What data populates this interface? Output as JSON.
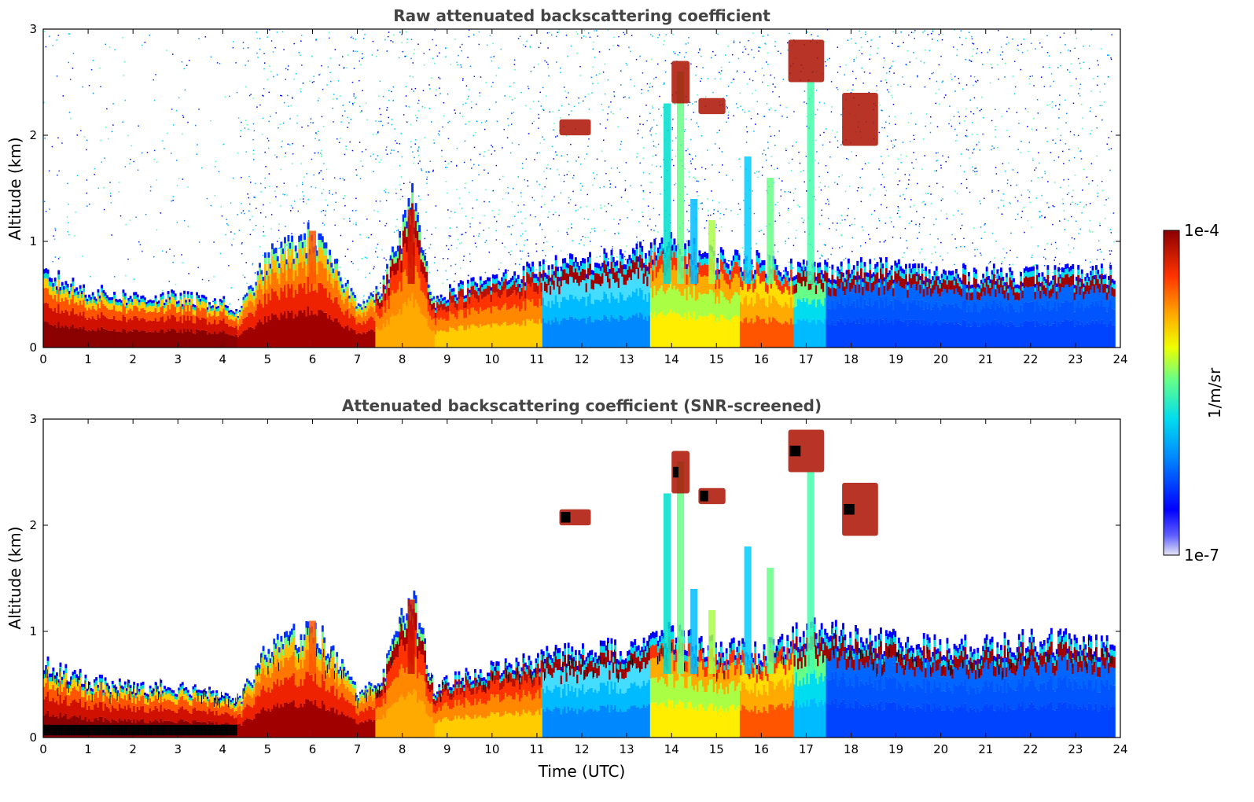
{
  "chart_data": [
    {
      "type": "heatmap",
      "title": "Raw attenuated backscattering coefficient",
      "xlabel": "",
      "ylabel": "Altitude (km)",
      "xlim": [
        0,
        24
      ],
      "ylim": [
        0,
        3
      ],
      "xticks": [
        "0",
        "1",
        "2",
        "3",
        "4",
        "5",
        "6",
        "7",
        "8",
        "9",
        "10",
        "11",
        "12",
        "13",
        "14",
        "15",
        "16",
        "17",
        "18",
        "19",
        "20",
        "21",
        "22",
        "23",
        "24"
      ],
      "yticks": [
        "0",
        "1",
        "2",
        "3"
      ],
      "scale": "log",
      "boundary_layer_top_km": [
        {
          "t": 0,
          "z": 0.65
        },
        {
          "t": 1,
          "z": 0.5
        },
        {
          "t": 2,
          "z": 0.45
        },
        {
          "t": 3,
          "z": 0.45
        },
        {
          "t": 4,
          "z": 0.4
        },
        {
          "t": 4.3,
          "z": 0.3
        },
        {
          "t": 5,
          "z": 0.8
        },
        {
          "t": 6,
          "z": 1.0
        },
        {
          "t": 7,
          "z": 0.4
        },
        {
          "t": 7.5,
          "z": 0.5
        },
        {
          "t": 8.2,
          "z": 1.3
        },
        {
          "t": 8.7,
          "z": 0.4
        },
        {
          "t": 9,
          "z": 0.5
        },
        {
          "t": 10,
          "z": 0.6
        },
        {
          "t": 11,
          "z": 0.7
        },
        {
          "t": 12,
          "z": 0.75
        },
        {
          "t": 13,
          "z": 0.8
        },
        {
          "t": 14,
          "z": 0.9
        },
        {
          "t": 15,
          "z": 0.8
        },
        {
          "t": 16,
          "z": 0.75
        },
        {
          "t": 17,
          "z": 0.7
        },
        {
          "t": 18,
          "z": 0.7
        },
        {
          "t": 19,
          "z": 0.7
        },
        {
          "t": 20,
          "z": 0.65
        },
        {
          "t": 21,
          "z": 0.65
        },
        {
          "t": 22,
          "z": 0.65
        },
        {
          "t": 23,
          "z": 0.65
        },
        {
          "t": 23.85,
          "z": 0.65
        }
      ],
      "cloud_layers": [
        {
          "t0": 11.5,
          "t1": 12.2,
          "z0": 2.0,
          "z1": 2.15
        },
        {
          "t0": 14.0,
          "t1": 14.4,
          "z0": 2.3,
          "z1": 2.7
        },
        {
          "t0": 14.6,
          "t1": 15.2,
          "z0": 2.2,
          "z1": 2.35
        },
        {
          "t0": 16.6,
          "t1": 17.4,
          "z0": 2.5,
          "z1": 2.9
        },
        {
          "t0": 17.8,
          "t1": 18.6,
          "z0": 1.9,
          "z1": 2.4
        }
      ]
    },
    {
      "type": "heatmap",
      "title": "Attenuated backscattering coefficient (SNR-screened)",
      "xlabel": "Time (UTC)",
      "ylabel": "Altitude (km)",
      "xlim": [
        0,
        24
      ],
      "ylim": [
        0,
        3
      ],
      "xticks": [
        "0",
        "1",
        "2",
        "3",
        "4",
        "5",
        "6",
        "7",
        "8",
        "9",
        "10",
        "11",
        "12",
        "13",
        "14",
        "15",
        "16",
        "17",
        "18",
        "19",
        "20",
        "21",
        "22",
        "23",
        "24"
      ],
      "yticks": [
        "0",
        "1",
        "2",
        "3"
      ],
      "scale": "log",
      "boundary_layer_top_km": [
        {
          "t": 0,
          "z": 0.65
        },
        {
          "t": 1,
          "z": 0.5
        },
        {
          "t": 2,
          "z": 0.45
        },
        {
          "t": 3,
          "z": 0.45
        },
        {
          "t": 4,
          "z": 0.4
        },
        {
          "t": 4.3,
          "z": 0.3
        },
        {
          "t": 5,
          "z": 0.8
        },
        {
          "t": 6,
          "z": 1.0
        },
        {
          "t": 7,
          "z": 0.4
        },
        {
          "t": 7.5,
          "z": 0.5
        },
        {
          "t": 8.2,
          "z": 1.3
        },
        {
          "t": 8.7,
          "z": 0.4
        },
        {
          "t": 9,
          "z": 0.5
        },
        {
          "t": 10,
          "z": 0.6
        },
        {
          "t": 11,
          "z": 0.7
        },
        {
          "t": 12,
          "z": 0.75
        },
        {
          "t": 13,
          "z": 0.8
        },
        {
          "t": 14,
          "z": 0.9
        },
        {
          "t": 15,
          "z": 0.8
        },
        {
          "t": 16,
          "z": 0.75
        },
        {
          "t": 17,
          "z": 0.95
        },
        {
          "t": 18,
          "z": 0.9
        },
        {
          "t": 19,
          "z": 0.85
        },
        {
          "t": 20,
          "z": 0.8
        },
        {
          "t": 21,
          "z": 0.8
        },
        {
          "t": 22,
          "z": 0.85
        },
        {
          "t": 23,
          "z": 0.85
        },
        {
          "t": 23.85,
          "z": 0.8
        }
      ],
      "cloud_layers": [
        {
          "t0": 11.5,
          "t1": 12.2,
          "z0": 2.0,
          "z1": 2.15
        },
        {
          "t0": 14.0,
          "t1": 14.4,
          "z0": 2.3,
          "z1": 2.7
        },
        {
          "t0": 14.6,
          "t1": 15.2,
          "z0": 2.2,
          "z1": 2.35
        },
        {
          "t0": 16.6,
          "t1": 17.4,
          "z0": 2.5,
          "z1": 2.9
        },
        {
          "t0": 17.8,
          "t1": 18.6,
          "z0": 1.9,
          "z1": 2.4
        }
      ]
    }
  ],
  "colorbar": {
    "label": "1/m/sr",
    "max_label": "1e-4",
    "min_label": "1e-7",
    "colormap": [
      "#e6e6f5",
      "#0000ff",
      "#00aaff",
      "#00ffcc",
      "#aaff44",
      "#ffee00",
      "#ff8800",
      "#ff2200",
      "#8b0000"
    ]
  }
}
